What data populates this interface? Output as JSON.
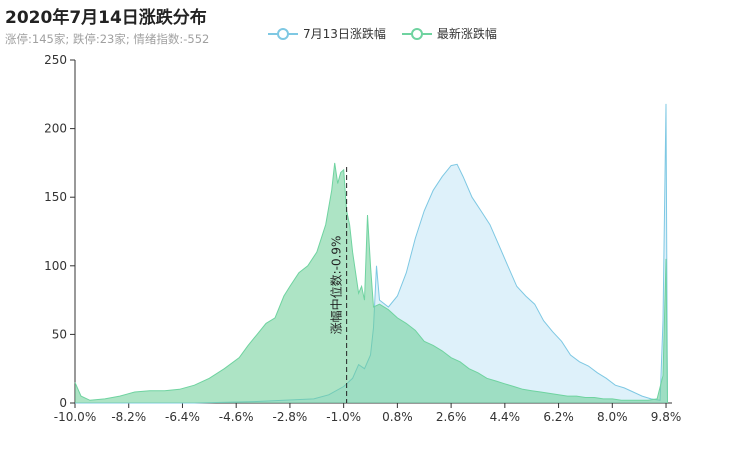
{
  "chart_data": {
    "type": "area",
    "title": "2020年7月14日涨跌分布",
    "subtitle": "涨停:145家; 跌停:23家; 情绪指数:-552",
    "ylim": [
      0,
      250
    ],
    "xlim": [
      -10.0,
      10.0
    ],
    "y_ticks": [
      "0",
      "50",
      "100",
      "150",
      "200",
      "250"
    ],
    "x_ticks": [
      "-10.0%",
      "-8.2%",
      "-6.4%",
      "-4.6%",
      "-2.8%",
      "-1.0%",
      "0.8%",
      "2.6%",
      "4.4%",
      "6.2%",
      "8.0%",
      "9.8%"
    ],
    "median_x": -0.9,
    "median_label": "涨幅中位数:-0.9%",
    "legend_position": "top-center",
    "series": [
      {
        "name": "7月13日涨跌幅",
        "color": "#7ec8e3",
        "fill": "rgba(190,228,245,0.5)",
        "points": [
          [
            -10.0,
            0
          ],
          [
            -8.0,
            0
          ],
          [
            -6.0,
            0
          ],
          [
            -4.0,
            1
          ],
          [
            -3.0,
            2
          ],
          [
            -2.0,
            3
          ],
          [
            -1.5,
            6
          ],
          [
            -1.0,
            12
          ],
          [
            -0.7,
            18
          ],
          [
            -0.5,
            28
          ],
          [
            -0.3,
            25
          ],
          [
            -0.1,
            35
          ],
          [
            0.0,
            55
          ],
          [
            0.1,
            100
          ],
          [
            0.2,
            75
          ],
          [
            0.5,
            70
          ],
          [
            0.8,
            78
          ],
          [
            1.1,
            95
          ],
          [
            1.4,
            120
          ],
          [
            1.7,
            140
          ],
          [
            2.0,
            155
          ],
          [
            2.3,
            165
          ],
          [
            2.6,
            173
          ],
          [
            2.8,
            174
          ],
          [
            3.0,
            165
          ],
          [
            3.3,
            150
          ],
          [
            3.6,
            140
          ],
          [
            3.9,
            130
          ],
          [
            4.2,
            115
          ],
          [
            4.5,
            100
          ],
          [
            4.8,
            85
          ],
          [
            5.1,
            78
          ],
          [
            5.4,
            72
          ],
          [
            5.7,
            60
          ],
          [
            6.0,
            52
          ],
          [
            6.3,
            45
          ],
          [
            6.6,
            35
          ],
          [
            6.9,
            30
          ],
          [
            7.2,
            27
          ],
          [
            7.5,
            22
          ],
          [
            7.8,
            18
          ],
          [
            8.1,
            13
          ],
          [
            8.4,
            11
          ],
          [
            8.7,
            8
          ],
          [
            9.0,
            5
          ],
          [
            9.3,
            3
          ],
          [
            9.6,
            2
          ],
          [
            9.7,
            60
          ],
          [
            9.8,
            218
          ],
          [
            9.85,
            0
          ]
        ]
      },
      {
        "name": "最新涨跌幅",
        "color": "#6fd3a0",
        "fill": "rgba(105,205,150,0.55)",
        "points": [
          [
            -10.0,
            15
          ],
          [
            -9.8,
            5
          ],
          [
            -9.5,
            2
          ],
          [
            -9.0,
            3
          ],
          [
            -8.5,
            5
          ],
          [
            -8.0,
            8
          ],
          [
            -7.5,
            9
          ],
          [
            -7.0,
            9
          ],
          [
            -6.5,
            10
          ],
          [
            -6.0,
            13
          ],
          [
            -5.5,
            18
          ],
          [
            -5.0,
            25
          ],
          [
            -4.5,
            33
          ],
          [
            -4.2,
            42
          ],
          [
            -3.9,
            50
          ],
          [
            -3.6,
            58
          ],
          [
            -3.3,
            62
          ],
          [
            -3.0,
            78
          ],
          [
            -2.8,
            85
          ],
          [
            -2.5,
            95
          ],
          [
            -2.2,
            100
          ],
          [
            -1.9,
            110
          ],
          [
            -1.6,
            130
          ],
          [
            -1.4,
            155
          ],
          [
            -1.3,
            175
          ],
          [
            -1.2,
            160
          ],
          [
            -1.1,
            168
          ],
          [
            -1.0,
            170
          ],
          [
            -0.9,
            140
          ],
          [
            -0.8,
            130
          ],
          [
            -0.7,
            110
          ],
          [
            -0.6,
            95
          ],
          [
            -0.5,
            80
          ],
          [
            -0.4,
            85
          ],
          [
            -0.3,
            75
          ],
          [
            -0.2,
            137
          ],
          [
            -0.1,
            100
          ],
          [
            0.0,
            70
          ],
          [
            0.2,
            72
          ],
          [
            0.5,
            68
          ],
          [
            0.8,
            62
          ],
          [
            1.1,
            58
          ],
          [
            1.4,
            53
          ],
          [
            1.7,
            45
          ],
          [
            2.0,
            42
          ],
          [
            2.3,
            38
          ],
          [
            2.6,
            33
          ],
          [
            2.9,
            30
          ],
          [
            3.2,
            25
          ],
          [
            3.5,
            22
          ],
          [
            3.8,
            18
          ],
          [
            4.1,
            16
          ],
          [
            4.4,
            14
          ],
          [
            4.7,
            12
          ],
          [
            5.0,
            10
          ],
          [
            5.3,
            9
          ],
          [
            5.6,
            8
          ],
          [
            5.9,
            7
          ],
          [
            6.2,
            6
          ],
          [
            6.5,
            5
          ],
          [
            6.8,
            5
          ],
          [
            7.1,
            4
          ],
          [
            7.4,
            4
          ],
          [
            7.7,
            3
          ],
          [
            8.0,
            3
          ],
          [
            8.3,
            2
          ],
          [
            8.6,
            2
          ],
          [
            8.9,
            2
          ],
          [
            9.2,
            2
          ],
          [
            9.5,
            3
          ],
          [
            9.7,
            20
          ],
          [
            9.8,
            105
          ],
          [
            9.85,
            0
          ]
        ]
      }
    ]
  }
}
